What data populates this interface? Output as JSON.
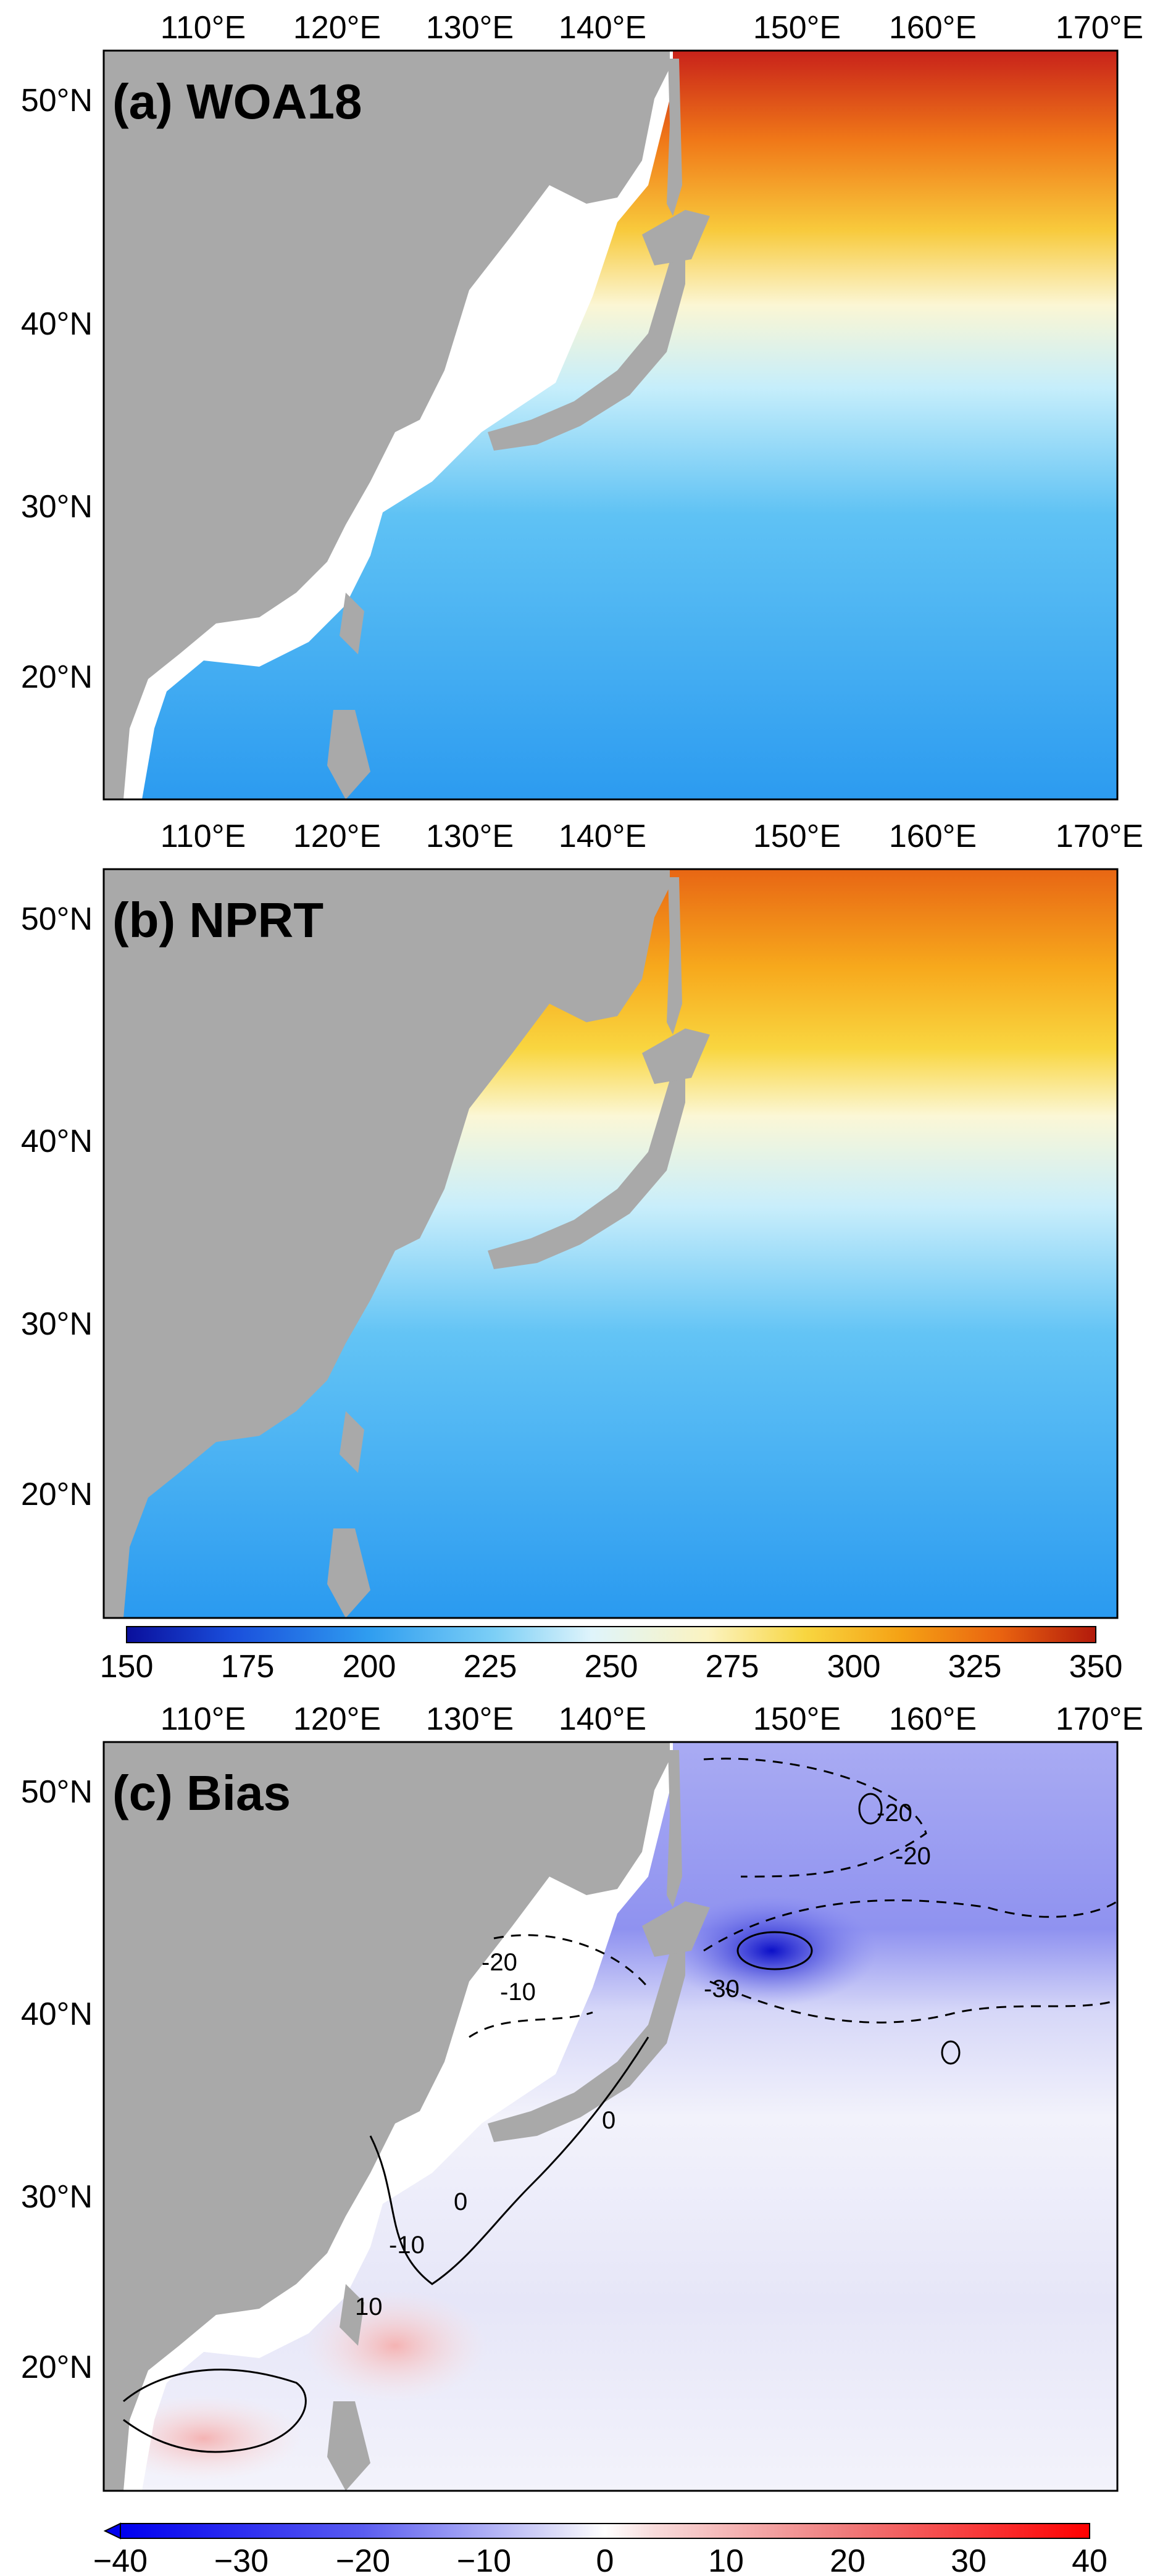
{
  "panels": [
    {
      "id": "a",
      "title": "(a) WOA18"
    },
    {
      "id": "b",
      "title": "(b) NPRT"
    },
    {
      "id": "c",
      "title": "(c) Bias"
    }
  ],
  "lon_labels": [
    "110°E",
    "120°E",
    "130°E",
    "140°E",
    "150°E",
    "160°E",
    "170°E"
  ],
  "lat_labels": [
    "50°N",
    "40°N",
    "30°N",
    "20°N"
  ],
  "colorbar_main": {
    "ticks": [
      "150",
      "175",
      "200",
      "225",
      "250",
      "275",
      "300",
      "325",
      "350"
    ],
    "colors": [
      "#0a0f9c",
      "#1a4fdc",
      "#2f9df0",
      "#7ccff6",
      "#dff4fb",
      "#fbf3c0",
      "#f8d640",
      "#f5a114",
      "#ea6410",
      "#b21a0b"
    ]
  },
  "colorbar_bias": {
    "ticks": [
      "−40",
      "−30",
      "−20",
      "−10",
      "0",
      "10",
      "20",
      "30",
      "40"
    ],
    "colors": [
      "#0000ee",
      "#5a5cf0",
      "#b7b8f6",
      "#ffffff",
      "#f5c0c0",
      "#ef7a7a",
      "#ff0000"
    ]
  },
  "contour_labels": [
    "-20",
    "-20",
    "-30",
    "-10",
    "-20",
    "0",
    "0",
    "-10",
    "10"
  ],
  "colors": {
    "land": "#a9a9a9",
    "frame": "#000000"
  }
}
